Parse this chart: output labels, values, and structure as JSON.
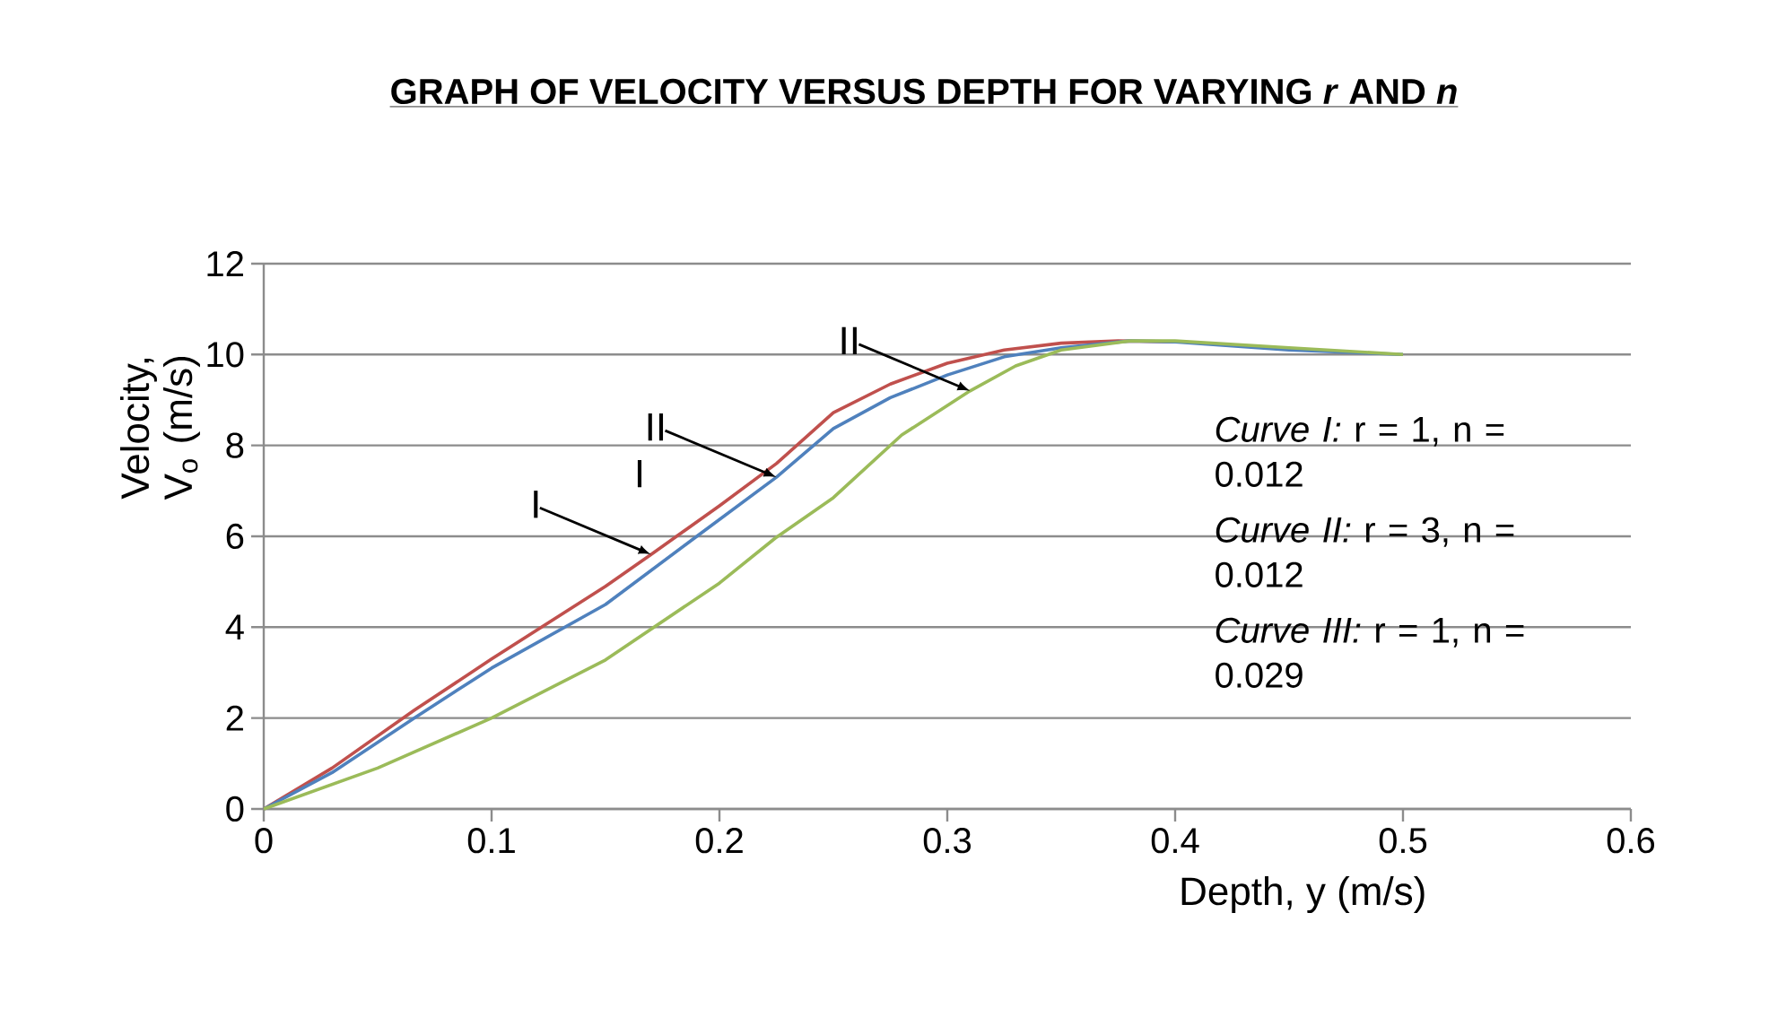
{
  "chart_data": {
    "type": "line",
    "title": "GRAPH OF VELOCITY VERSUS DEPTH FOR VARYING *r* AND *n*",
    "xlabel": "Depth, y (m/s)",
    "ylabel": "Velocity, V$_{o}$ (m/s)",
    "xlim": [
      0,
      0.6
    ],
    "ylim": [
      0,
      12
    ],
    "xticks": [
      0,
      0.1,
      0.2,
      0.3,
      0.4,
      0.5,
      0.6
    ],
    "yticks": [
      0,
      2,
      4,
      6,
      8,
      10,
      12
    ],
    "grid": "y",
    "marker": "none",
    "line_style": "solid",
    "series": [
      {
        "color": "#c0504d",
        "x": [
          0,
          0.03,
          0.066,
          0.1,
          0.15,
          0.17,
          0.2,
          0.225,
          0.25,
          0.275,
          0.3,
          0.325,
          0.35,
          0.375,
          0.4
        ],
        "values": [
          0,
          0.9,
          2.17,
          3.3,
          4.9,
          5.6,
          6.67,
          7.6,
          8.72,
          9.35,
          9.81,
          10.1,
          10.25,
          10.3,
          10.28
        ]
      },
      {
        "color": "#4f81bd",
        "x": [
          0,
          0.03,
          0.066,
          0.1,
          0.15,
          0.189,
          0.225,
          0.25,
          0.275,
          0.3,
          0.325,
          0.35,
          0.38,
          0.4,
          0.45,
          0.5
        ],
        "values": [
          0,
          0.8,
          2.0,
          3.1,
          4.5,
          5.96,
          7.3,
          8.37,
          9.05,
          9.55,
          9.95,
          10.15,
          10.3,
          10.28,
          10.1,
          10.0
        ]
      },
      {
        "color": "#9bbb59",
        "x": [
          0,
          0.05,
          0.1,
          0.15,
          0.2,
          0.2245,
          0.25,
          0.28,
          0.31,
          0.33,
          0.35,
          0.38,
          0.4,
          0.45,
          0.5
        ],
        "values": [
          0,
          0.9,
          2.0,
          3.28,
          4.97,
          5.96,
          6.85,
          8.23,
          9.2,
          9.75,
          10.1,
          10.3,
          10.3,
          10.15,
          10.0
        ]
      }
    ],
    "annotations": [
      "*Curve I:* r = 1, n = 0.012",
      "*Curve II:* r = 3, n = 0.012",
      "*Curve III:* r = 1, n = 0.029",
      {
        "text": "I",
        "x": 0.17,
        "y": 5.6
      },
      {
        "text": "II",
        "x": 0.225,
        "y": 7.3
      },
      "I",
      {
        "text": "II",
        "x": 0.31,
        "y": 9.2
      }
    ]
  }
}
